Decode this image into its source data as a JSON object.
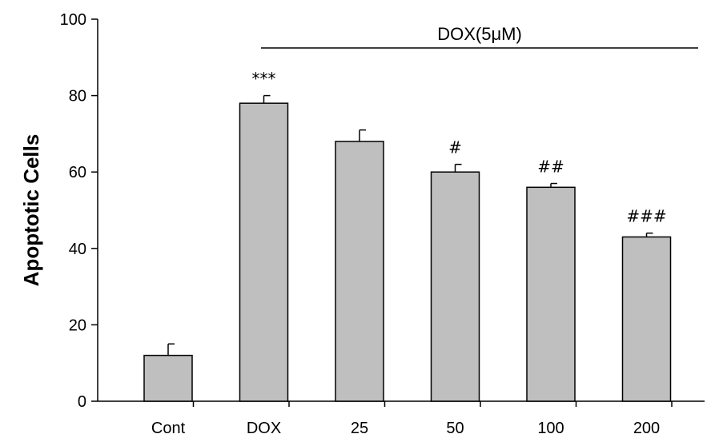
{
  "chart_data": {
    "type": "bar",
    "categories": [
      "Cont",
      "DOX",
      "25",
      "50",
      "100",
      "200"
    ],
    "values": [
      12,
      78,
      68,
      60,
      56,
      43
    ],
    "errors": [
      3,
      2,
      3,
      2,
      1,
      1
    ],
    "annotations": [
      "",
      "***",
      "",
      "#",
      "##",
      "###"
    ],
    "title": "",
    "xlabel": "",
    "ylabel": "Apoptotic Cells",
    "ylim": [
      0,
      100
    ],
    "yticks": [
      0,
      20,
      40,
      60,
      80,
      100
    ],
    "bracket_label": "DOX(5μM)",
    "bar_color": "#bfbfbf",
    "grid": false,
    "legend": "none"
  }
}
